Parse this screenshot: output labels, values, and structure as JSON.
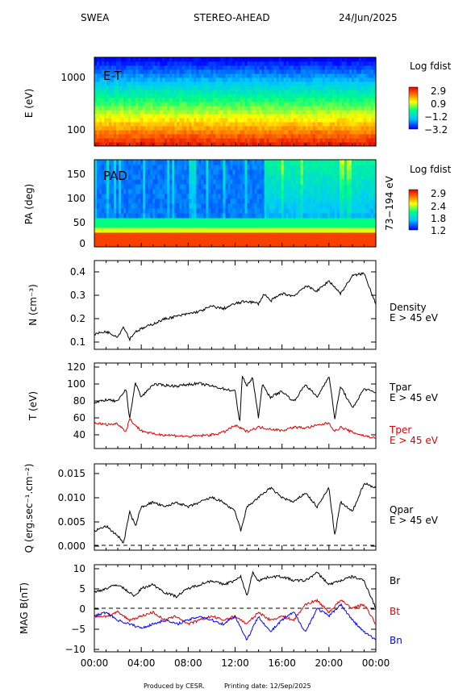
{
  "header": {
    "instrument": "SWEA",
    "spacecraft": "STEREO-AHEAD",
    "date": "24/Jun/2025"
  },
  "footer": {
    "produced": "Produced by CESR.",
    "printing": "Printing date: 12/Sep/2025"
  },
  "colors": {
    "black": "#000000",
    "red": "#e00000",
    "blue": "#0000ff"
  },
  "chart_data": [
    {
      "type": "heatmap",
      "panel": "energy-time",
      "annotation": "E-T",
      "ylabel": "E (eV)",
      "yscale": "log",
      "yticks": [
        "1000",
        "100"
      ],
      "colorbar_title": "Log fdist",
      "colorbar_ticks": [
        "2.9",
        "0.9",
        "−1.2",
        "−3.2"
      ]
    },
    {
      "type": "heatmap",
      "panel": "pitch-angle",
      "annotation": "PAD",
      "ylabel": "PA (deg)",
      "yticks": [
        "150",
        "100",
        "50",
        "0"
      ],
      "ylim": [
        0,
        180
      ],
      "right_label": "73−194 eV",
      "colorbar_title": "Log fdist",
      "colorbar_ticks": [
        "2.9",
        "2.4",
        "1.8",
        "1.2"
      ]
    },
    {
      "type": "line",
      "panel": "density",
      "ylabel": "N (cm⁻³)",
      "yticks": [
        "0.4",
        "0.3",
        "0.2",
        "0.1"
      ],
      "ylim": [
        0.08,
        0.43
      ],
      "series": [
        {
          "name": "Density",
          "subtitle": "E > 45 eV",
          "color": "#000000",
          "x": [
            0,
            1,
            2,
            2.5,
            3,
            3.5,
            4,
            5,
            6,
            7,
            8,
            9,
            10,
            11,
            12,
            13,
            14,
            14.5,
            15,
            16,
            17,
            18,
            19,
            20,
            21,
            22,
            23,
            23.5,
            24
          ],
          "values": [
            0.14,
            0.15,
            0.13,
            0.17,
            0.12,
            0.15,
            0.16,
            0.18,
            0.2,
            0.21,
            0.22,
            0.23,
            0.25,
            0.24,
            0.26,
            0.27,
            0.26,
            0.3,
            0.27,
            0.3,
            0.29,
            0.33,
            0.31,
            0.35,
            0.3,
            0.37,
            0.38,
            0.32,
            0.26
          ]
        }
      ]
    },
    {
      "type": "line",
      "panel": "temperature",
      "ylabel": "T (eV)",
      "yticks": [
        "120",
        "100",
        "80",
        "60",
        "40"
      ],
      "ylim": [
        25,
        125
      ],
      "series": [
        {
          "name": "Tpar",
          "subtitle": "E > 45 eV",
          "color": "#000000",
          "x": [
            0,
            1,
            2,
            2.7,
            3,
            3.5,
            4,
            5,
            6,
            7,
            8,
            9,
            10,
            11,
            12,
            12.4,
            12.6,
            13,
            13.5,
            14,
            14.3,
            15,
            16,
            17,
            18,
            19,
            20,
            20.5,
            21,
            22,
            23,
            24
          ],
          "values": [
            78,
            82,
            80,
            95,
            60,
            102,
            85,
            100,
            99,
            98,
            100,
            101,
            98,
            95,
            92,
            55,
            110,
            98,
            108,
            60,
            100,
            85,
            92,
            80,
            100,
            85,
            110,
            60,
            98,
            72,
            95,
            90
          ]
        },
        {
          "name": "Tper",
          "subtitle": "E > 45 eV",
          "color": "#e00000",
          "x": [
            0,
            1,
            2,
            2.7,
            3,
            3.5,
            4,
            5,
            6,
            7,
            8,
            9,
            10,
            11,
            12,
            13,
            14,
            15,
            16,
            17,
            18,
            19,
            20,
            20.5,
            21,
            22,
            23,
            24
          ],
          "values": [
            55,
            53,
            54,
            45,
            60,
            52,
            46,
            42,
            41,
            40,
            39,
            40,
            41,
            44,
            52,
            45,
            50,
            48,
            46,
            50,
            49,
            52,
            55,
            45,
            50,
            44,
            40,
            37
          ]
        }
      ]
    },
    {
      "type": "line",
      "panel": "heat-flux",
      "ylabel": "Q (erg.sec⁻¹.cm⁻²)",
      "yticks": [
        "0.015",
        "0.010",
        "0.005",
        "0.000"
      ],
      "ylim": [
        -0.001,
        0.017
      ],
      "zero_line": true,
      "series": [
        {
          "name": "Qpar",
          "subtitle": "E > 45 eV",
          "color": "#000000",
          "x": [
            0,
            1,
            2,
            2.5,
            3,
            3.5,
            4,
            5,
            6,
            7,
            8,
            9,
            10,
            11,
            12,
            12.5,
            13,
            14,
            14.5,
            15,
            16,
            17,
            18,
            19,
            20,
            20.5,
            21,
            22,
            23,
            24
          ],
          "values": [
            0.003,
            0.004,
            0.002,
            0.0005,
            0.007,
            0.004,
            0.008,
            0.009,
            0.008,
            0.009,
            0.008,
            0.009,
            0.01,
            0.009,
            0.007,
            0.003,
            0.008,
            0.01,
            0.011,
            0.012,
            0.01,
            0.009,
            0.011,
            0.008,
            0.012,
            0.002,
            0.009,
            0.007,
            0.013,
            0.012
          ]
        }
      ]
    },
    {
      "type": "line",
      "panel": "magnetic-field",
      "ylabel": "MAG B(nT)",
      "yticks": [
        "10",
        "5",
        "0",
        "−5",
        "−10"
      ],
      "ylim": [
        -11,
        11
      ],
      "zero_line": true,
      "xticks": [
        "00:00",
        "04:00",
        "08:00",
        "12:00",
        "16:00",
        "20:00",
        "00:00"
      ],
      "xlim": [
        0,
        24
      ],
      "series": [
        {
          "name": "Br",
          "color": "#000000",
          "x": [
            0,
            1,
            2,
            3,
            3.5,
            4,
            5,
            6,
            7,
            8,
            9,
            10,
            11,
            12,
            12.5,
            13,
            13.5,
            14,
            15,
            16,
            17,
            18,
            19,
            20,
            21,
            22,
            23,
            24
          ],
          "values": [
            4,
            5,
            6,
            4,
            3,
            5,
            6,
            4,
            3,
            5,
            6,
            7,
            6,
            7,
            8,
            3,
            9,
            7,
            8,
            8,
            7,
            7,
            9,
            6,
            7,
            8,
            7,
            0
          ]
        },
        {
          "name": "Bt",
          "color": "#e00000",
          "x": [
            0,
            1,
            2,
            3,
            4,
            5,
            6,
            7,
            8,
            9,
            10,
            11,
            12,
            13,
            14,
            15,
            16,
            17,
            18,
            19,
            20,
            21,
            22,
            23,
            24
          ],
          "values": [
            -2,
            -2,
            -1,
            -3,
            -2,
            -1,
            -3,
            -2,
            -4,
            -3,
            -2,
            -3,
            -2,
            -4,
            -1,
            -3,
            -2,
            -3,
            1,
            2,
            -1,
            2,
            0,
            1,
            -4
          ]
        },
        {
          "name": "Bn",
          "color": "#0000ff",
          "x": [
            0,
            1,
            2,
            3,
            4,
            5,
            6,
            7,
            8,
            9,
            10,
            11,
            12,
            13,
            14,
            15,
            16,
            17,
            18,
            19,
            20,
            21,
            22,
            23,
            24
          ],
          "values": [
            -2,
            -1,
            -3,
            -4,
            -5,
            -4,
            -3,
            -4,
            -3,
            -2,
            -3,
            -4,
            -2,
            -8,
            -2,
            -6,
            -3,
            -1,
            -6,
            0,
            -2,
            1,
            -3,
            -6,
            -8
          ]
        }
      ]
    }
  ]
}
